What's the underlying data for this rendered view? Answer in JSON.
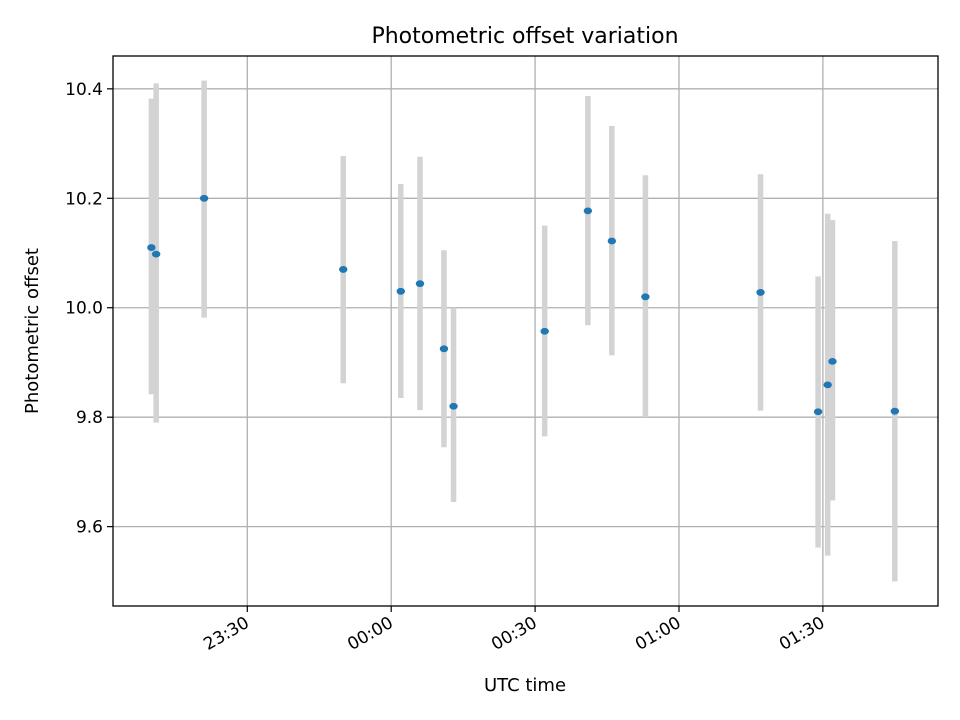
{
  "chart_data": {
    "type": "scatter",
    "title": "Photometric offset variation",
    "xlabel": "UTC time",
    "ylabel": "Photometric offset",
    "xaxis_kind": "time",
    "xlim": [
      "23:02",
      "01:54"
    ],
    "ylim": [
      9.455,
      10.46
    ],
    "grid": true,
    "x_ticks": [
      {
        "value": "23:30",
        "label": "23:30"
      },
      {
        "value": "00:00",
        "label": "00:00"
      },
      {
        "value": "00:30",
        "label": "00:30"
      },
      {
        "value": "01:00",
        "label": "01:00"
      },
      {
        "value": "01:30",
        "label": "01:30"
      }
    ],
    "y_ticks": [
      {
        "value": 9.6,
        "label": "9.6"
      },
      {
        "value": 9.8,
        "label": "9.8"
      },
      {
        "value": 10.0,
        "label": "10.0"
      },
      {
        "value": 10.2,
        "label": "10.2"
      },
      {
        "value": 10.4,
        "label": "10.4"
      }
    ],
    "colors": {
      "point": "#1f77b4",
      "errorbar": "#d3d3d3"
    },
    "series": [
      {
        "points": [
          {
            "x": "23:10",
            "y": 10.11,
            "ylow": 9.842,
            "yhigh": 10.382
          },
          {
            "x": "23:11",
            "y": 10.098,
            "ylow": 9.79,
            "yhigh": 10.41
          },
          {
            "x": "23:21",
            "y": 10.2,
            "ylow": 9.982,
            "yhigh": 10.415
          },
          {
            "x": "23:50",
            "y": 10.07,
            "ylow": 9.862,
            "yhigh": 10.277
          },
          {
            "x": "00:02",
            "y": 10.03,
            "ylow": 9.835,
            "yhigh": 10.226
          },
          {
            "x": "00:06",
            "y": 10.044,
            "ylow": 9.813,
            "yhigh": 10.276
          },
          {
            "x": "00:11",
            "y": 9.925,
            "ylow": 9.745,
            "yhigh": 10.105
          },
          {
            "x": "00:13",
            "y": 9.82,
            "ylow": 9.645,
            "yhigh": 10.0
          },
          {
            "x": "00:32",
            "y": 9.957,
            "ylow": 9.765,
            "yhigh": 10.15
          },
          {
            "x": "00:41",
            "y": 10.177,
            "ylow": 9.968,
            "yhigh": 10.387
          },
          {
            "x": "00:46",
            "y": 10.122,
            "ylow": 9.913,
            "yhigh": 10.332
          },
          {
            "x": "00:53",
            "y": 10.02,
            "ylow": 9.8,
            "yhigh": 10.242
          },
          {
            "x": "01:17",
            "y": 10.028,
            "ylow": 9.812,
            "yhigh": 10.244
          },
          {
            "x": "01:29",
            "y": 9.81,
            "ylow": 9.562,
            "yhigh": 10.057
          },
          {
            "x": "01:31",
            "y": 9.859,
            "ylow": 9.547,
            "yhigh": 10.172
          },
          {
            "x": "01:32",
            "y": 9.902,
            "ylow": 9.648,
            "yhigh": 10.16
          },
          {
            "x": "01:45",
            "y": 9.811,
            "ylow": 9.5,
            "yhigh": 10.122
          }
        ]
      }
    ]
  }
}
